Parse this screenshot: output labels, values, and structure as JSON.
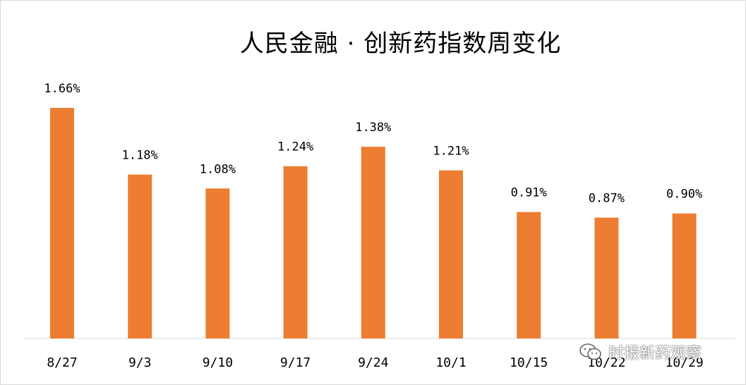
{
  "chart_data": {
    "type": "bar",
    "title": "人民金融 · 创新药指数周变化",
    "categories": [
      "8/27",
      "9/3",
      "9/10",
      "9/17",
      "9/24",
      "10/1",
      "10/15",
      "10/22",
      "10/29"
    ],
    "values": [
      1.66,
      1.18,
      1.08,
      1.24,
      1.38,
      1.21,
      0.91,
      0.87,
      0.9
    ],
    "value_labels": [
      "1.66%",
      "1.18%",
      "1.08%",
      "1.24%",
      "1.38%",
      "1.21%",
      "0.91%",
      "0.87%",
      "0.90%"
    ],
    "value_unit": "%",
    "ylim": [
      0,
      1.66
    ],
    "grid": false,
    "bar_color": "#ED7D31"
  },
  "watermark": {
    "text": "时报新药观察",
    "icon": "wechat-icon"
  }
}
